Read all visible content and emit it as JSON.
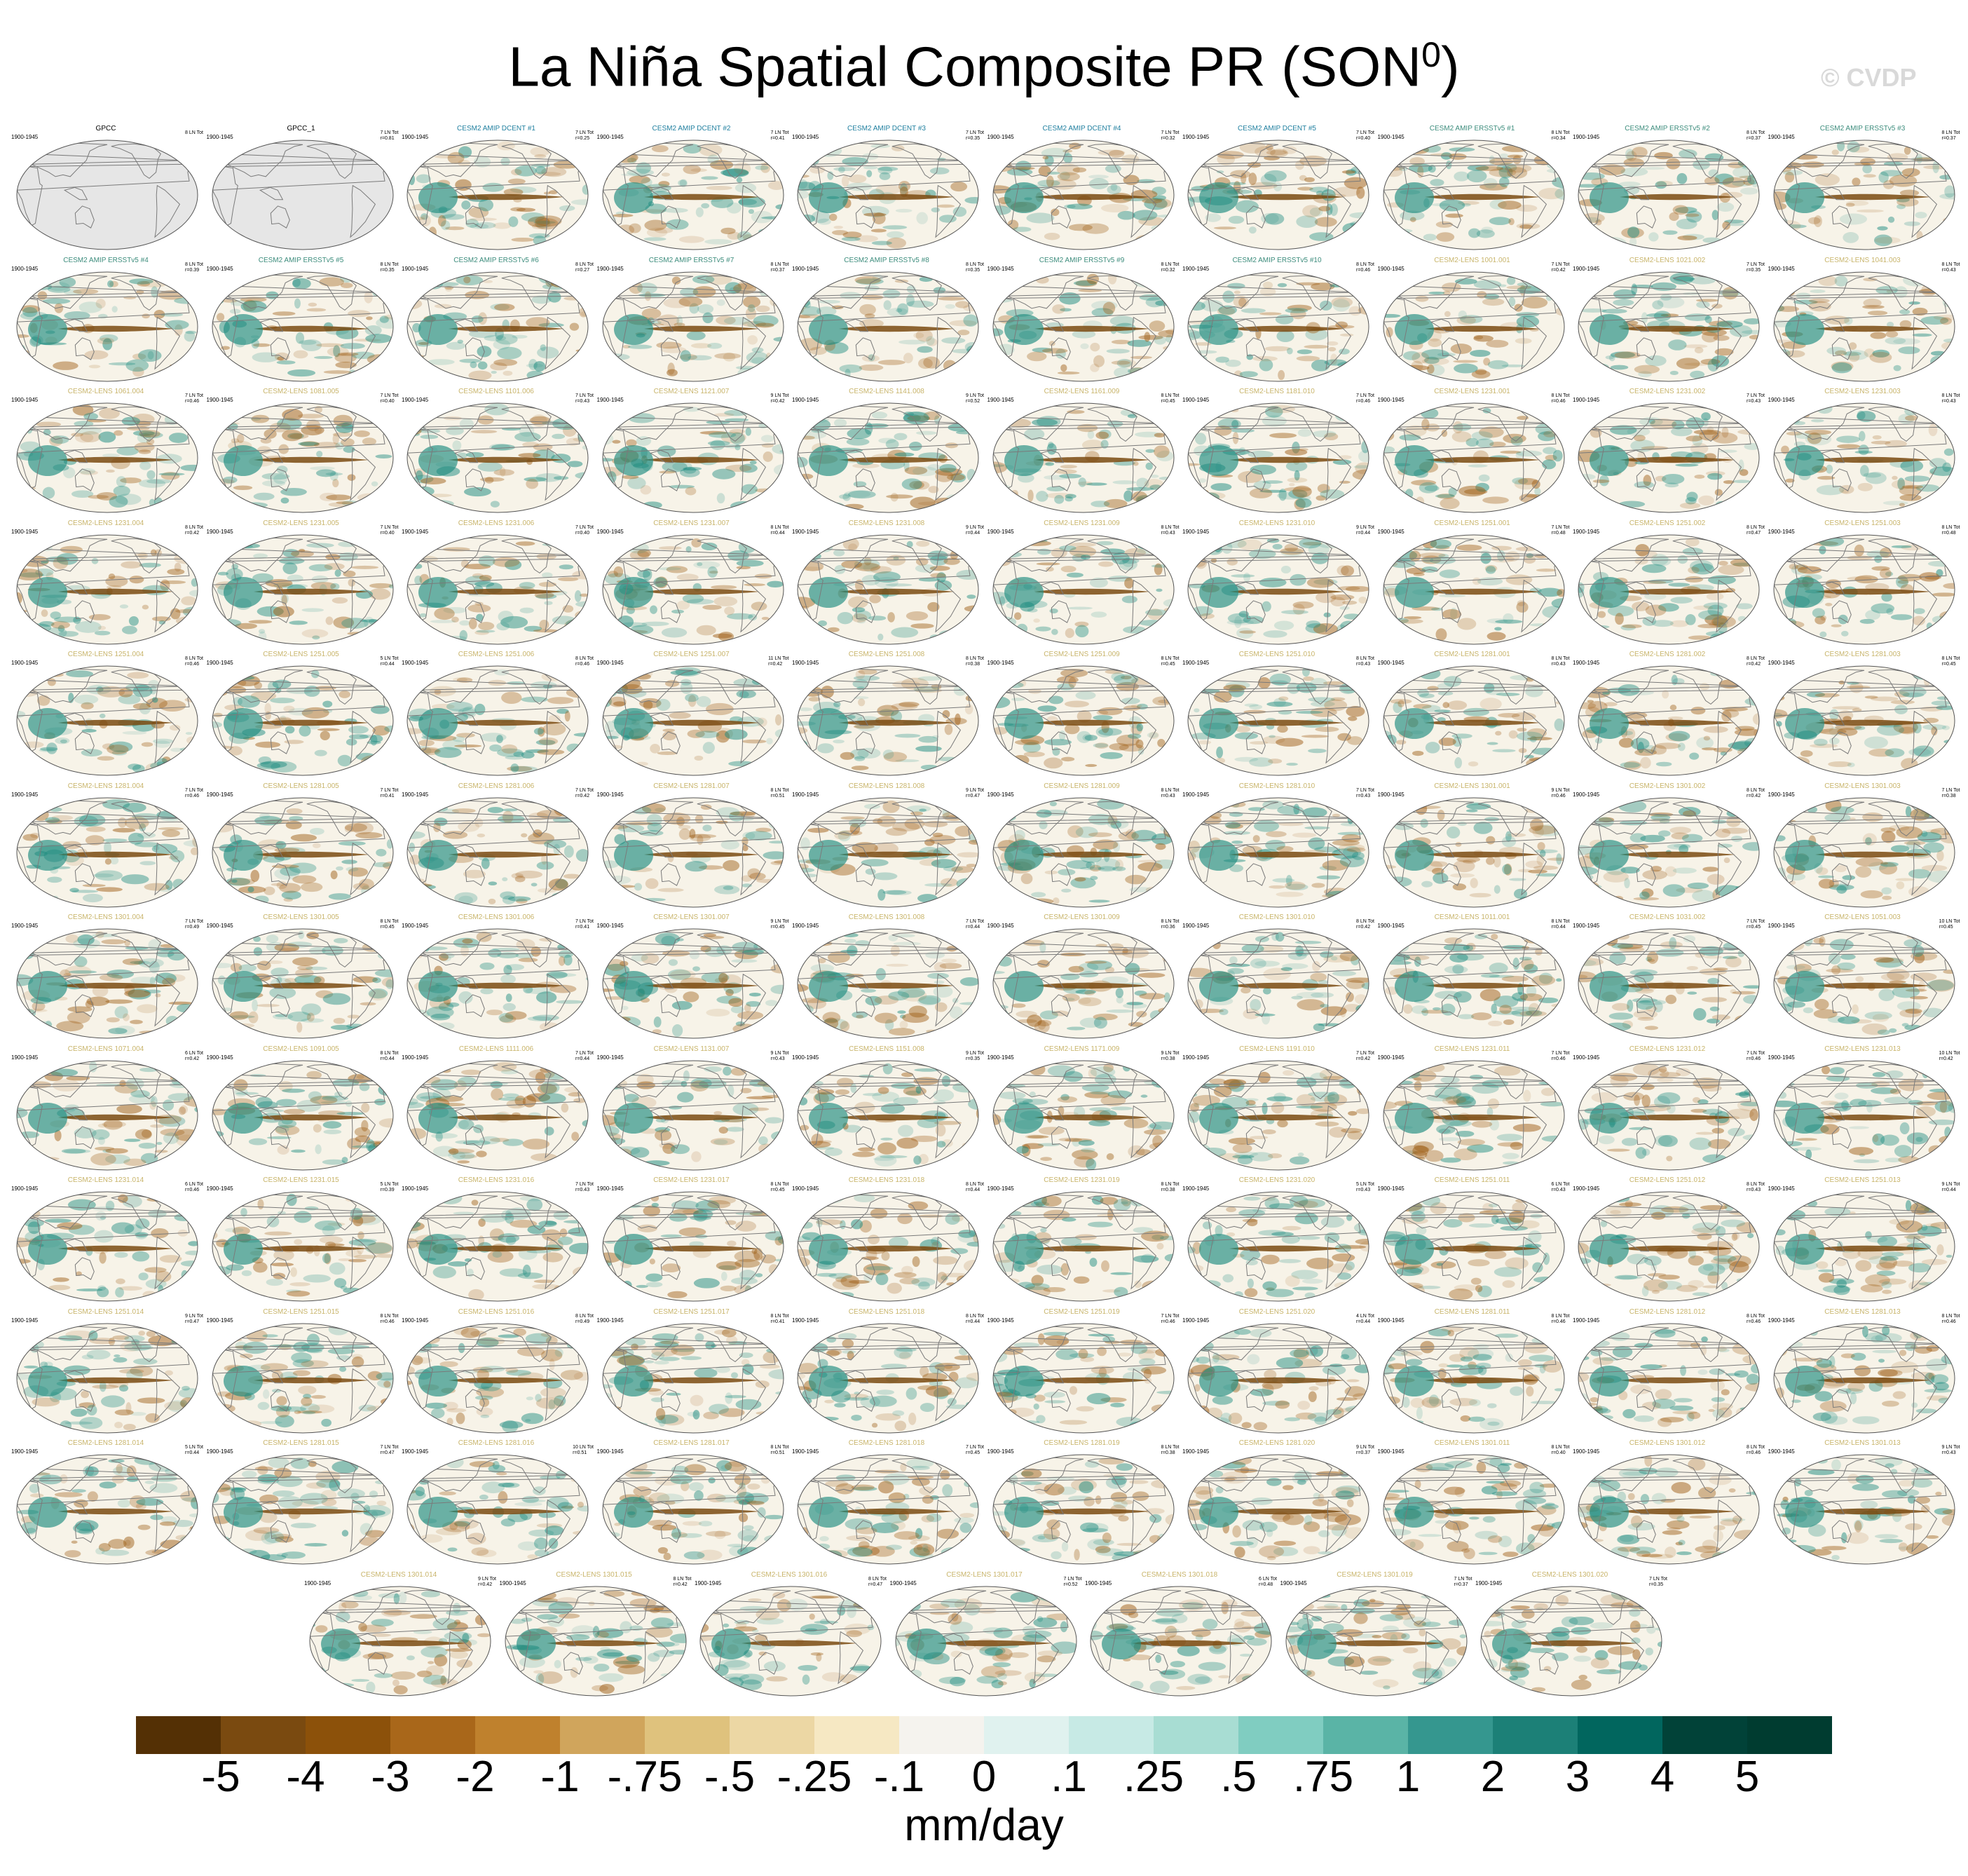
{
  "title": {
    "text": "La Niña Spatial Composite PR (SON",
    "superscript": "0",
    "suffix": ")"
  },
  "watermark": "© CVDP",
  "period": "1900-1945",
  "colors": {
    "obs_title": "#000000",
    "amip_title": "#1f7f9f",
    "ersst_title": "#3c8c7c",
    "lens_title": "#c8b46a",
    "coast": "#7a7a7a",
    "land_obs": "#e6e6e6",
    "ocean_bg": "#f7f3e8",
    "dry": "#a0611a",
    "wet": "#1e8c80"
  },
  "chart_data": {
    "type": "heatmap",
    "description_units": "mm/day",
    "colorbar": {
      "labels": [
        "-5",
        "-4",
        "-3",
        "-2",
        "-1",
        "-.75",
        "-.5",
        "-.25",
        "-.1",
        "0",
        ".1",
        ".25",
        ".5",
        ".75",
        "1",
        "2",
        "3",
        "4",
        "5"
      ],
      "colors": [
        "#543005",
        "#7a4a10",
        "#8c510a",
        "#a9671a",
        "#bf812d",
        "#d0a55c",
        "#dfc27d",
        "#ecd7a4",
        "#f6e8c3",
        "#f5f3ee",
        "#e0f2ef",
        "#c7eae5",
        "#a8ddd3",
        "#80cdc1",
        "#5ab4a6",
        "#35978f",
        "#1c8077",
        "#01665e",
        "#014238",
        "#003c30"
      ]
    },
    "units": "mm/day",
    "panels": [
      {
        "name": "GPCC",
        "stat": "8 LN Tot",
        "group": "obs"
      },
      {
        "name": "GPCC_1",
        "stat": "7 LN Tot\nr=0.81",
        "group": "obs"
      },
      {
        "name": "CESM2 AMIP DCENT #1",
        "stat": "7 LN Tot\nr=0.25",
        "group": "amip"
      },
      {
        "name": "CESM2 AMIP DCENT #2",
        "stat": "7 LN Tot\nr=0.41",
        "group": "amip"
      },
      {
        "name": "CESM2 AMIP DCENT #3",
        "stat": "7 LN Tot\nr=0.35",
        "group": "amip"
      },
      {
        "name": "CESM2 AMIP DCENT #4",
        "stat": "7 LN Tot\nr=0.32",
        "group": "amip"
      },
      {
        "name": "CESM2 AMIP DCENT #5",
        "stat": "7 LN Tot\nr=0.40",
        "group": "amip"
      },
      {
        "name": "CESM2 AMIP ERSSTv5 #1",
        "stat": "8 LN Tot\nr=0.34",
        "group": "ersst"
      },
      {
        "name": "CESM2 AMIP ERSSTv5 #2",
        "stat": "8 LN Tot\nr=0.37",
        "group": "ersst"
      },
      {
        "name": "CESM2 AMIP ERSSTv5 #3",
        "stat": "8 LN Tot\nr=0.37",
        "group": "ersst"
      },
      {
        "name": "CESM2 AMIP ERSSTv5 #4",
        "stat": "8 LN Tot\nr=0.39",
        "group": "ersst"
      },
      {
        "name": "CESM2 AMIP ERSSTv5 #5",
        "stat": "8 LN Tot\nr=0.35",
        "group": "ersst"
      },
      {
        "name": "CESM2 AMIP ERSSTv5 #6",
        "stat": "8 LN Tot\nr=0.27",
        "group": "ersst"
      },
      {
        "name": "CESM2 AMIP ERSSTv5 #7",
        "stat": "8 LN Tot\nr=0.37",
        "group": "ersst"
      },
      {
        "name": "CESM2 AMIP ERSSTv5 #8",
        "stat": "8 LN Tot\nr=0.35",
        "group": "ersst"
      },
      {
        "name": "CESM2 AMIP ERSSTv5 #9",
        "stat": "8 LN Tot\nr=0.32",
        "group": "ersst"
      },
      {
        "name": "CESM2 AMIP ERSSTv5 #10",
        "stat": "8 LN Tot\nr=0.46",
        "group": "ersst"
      },
      {
        "name": "CESM2-LENS 1001.001",
        "stat": "7 LN Tot\nr=0.42",
        "group": "lens"
      },
      {
        "name": "CESM2-LENS 1021.002",
        "stat": "7 LN Tot\nr=0.35",
        "group": "lens"
      },
      {
        "name": "CESM2-LENS 1041.003",
        "stat": "8 LN Tot\nr=0.43",
        "group": "lens"
      },
      {
        "name": "CESM2-LENS 1061.004",
        "stat": "7 LN Tot\nr=0.46",
        "group": "lens"
      },
      {
        "name": "CESM2-LENS 1081.005",
        "stat": "7 LN Tot\nr=0.40",
        "group": "lens"
      },
      {
        "name": "CESM2-LENS 1101.006",
        "stat": "7 LN Tot\nr=0.43",
        "group": "lens"
      },
      {
        "name": "CESM2-LENS 1121.007",
        "stat": "9 LN Tot\nr=0.42",
        "group": "lens"
      },
      {
        "name": "CESM2-LENS 1141.008",
        "stat": "9 LN Tot\nr=0.52",
        "group": "lens"
      },
      {
        "name": "CESM2-LENS 1161.009",
        "stat": "8 LN Tot\nr=0.45",
        "group": "lens"
      },
      {
        "name": "CESM2-LENS 1181.010",
        "stat": "7 LN Tot\nr=0.46",
        "group": "lens"
      },
      {
        "name": "CESM2-LENS 1231.001",
        "stat": "8 LN Tot\nr=0.46",
        "group": "lens"
      },
      {
        "name": "CESM2-LENS 1231.002",
        "stat": "7 LN Tot\nr=0.43",
        "group": "lens"
      },
      {
        "name": "CESM2-LENS 1231.003",
        "stat": "8 LN Tot\nr=0.43",
        "group": "lens"
      },
      {
        "name": "CESM2-LENS 1231.004",
        "stat": "8 LN Tot\nr=0.42",
        "group": "lens"
      },
      {
        "name": "CESM2-LENS 1231.005",
        "stat": "7 LN Tot\nr=0.40",
        "group": "lens"
      },
      {
        "name": "CESM2-LENS 1231.006",
        "stat": "7 LN Tot\nr=0.40",
        "group": "lens"
      },
      {
        "name": "CESM2-LENS 1231.007",
        "stat": "8 LN Tot\nr=0.44",
        "group": "lens"
      },
      {
        "name": "CESM2-LENS 1231.008",
        "stat": "9 LN Tot\nr=0.44",
        "group": "lens"
      },
      {
        "name": "CESM2-LENS 1231.009",
        "stat": "8 LN Tot\nr=0.43",
        "group": "lens"
      },
      {
        "name": "CESM2-LENS 1231.010",
        "stat": "9 LN Tot\nr=0.44",
        "group": "lens"
      },
      {
        "name": "CESM2-LENS 1251.001",
        "stat": "7 LN Tot\nr=0.48",
        "group": "lens"
      },
      {
        "name": "CESM2-LENS 1251.002",
        "stat": "8 LN Tot\nr=0.47",
        "group": "lens"
      },
      {
        "name": "CESM2-LENS 1251.003",
        "stat": "8 LN Tot\nr=0.48",
        "group": "lens"
      },
      {
        "name": "CESM2-LENS 1251.004",
        "stat": "8 LN Tot\nr=0.46",
        "group": "lens"
      },
      {
        "name": "CESM2-LENS 1251.005",
        "stat": "5 LN Tot\nr=0.44",
        "group": "lens"
      },
      {
        "name": "CESM2-LENS 1251.006",
        "stat": "8 LN Tot\nr=0.46",
        "group": "lens"
      },
      {
        "name": "CESM2-LENS 1251.007",
        "stat": "11 LN Tot\nr=0.42",
        "group": "lens"
      },
      {
        "name": "CESM2-LENS 1251.008",
        "stat": "8 LN Tot\nr=0.38",
        "group": "lens"
      },
      {
        "name": "CESM2-LENS 1251.009",
        "stat": "8 LN Tot\nr=0.45",
        "group": "lens"
      },
      {
        "name": "CESM2-LENS 1251.010",
        "stat": "8 LN Tot\nr=0.43",
        "group": "lens"
      },
      {
        "name": "CESM2-LENS 1281.001",
        "stat": "8 LN Tot\nr=0.43",
        "group": "lens"
      },
      {
        "name": "CESM2-LENS 1281.002",
        "stat": "8 LN Tot\nr=0.42",
        "group": "lens"
      },
      {
        "name": "CESM2-LENS 1281.003",
        "stat": "8 LN Tot\nr=0.45",
        "group": "lens"
      },
      {
        "name": "CESM2-LENS 1281.004",
        "stat": "7 LN Tot\nr=0.46",
        "group": "lens"
      },
      {
        "name": "CESM2-LENS 1281.005",
        "stat": "7 LN Tot\nr=0.41",
        "group": "lens"
      },
      {
        "name": "CESM2-LENS 1281.006",
        "stat": "7 LN Tot\nr=0.42",
        "group": "lens"
      },
      {
        "name": "CESM2-LENS 1281.007",
        "stat": "8 LN Tot\nr=0.51",
        "group": "lens"
      },
      {
        "name": "CESM2-LENS 1281.008",
        "stat": "9 LN Tot\nr=0.47",
        "group": "lens"
      },
      {
        "name": "CESM2-LENS 1281.009",
        "stat": "8 LN Tot\nr=0.43",
        "group": "lens"
      },
      {
        "name": "CESM2-LENS 1281.010",
        "stat": "7 LN Tot\nr=0.43",
        "group": "lens"
      },
      {
        "name": "CESM2-LENS 1301.001",
        "stat": "9 LN Tot\nr=0.46",
        "group": "lens"
      },
      {
        "name": "CESM2-LENS 1301.002",
        "stat": "8 LN Tot\nr=0.42",
        "group": "lens"
      },
      {
        "name": "CESM2-LENS 1301.003",
        "stat": "7 LN Tot\nr=0.38",
        "group": "lens"
      },
      {
        "name": "CESM2-LENS 1301.004",
        "stat": "7 LN Tot\nr=0.49",
        "group": "lens"
      },
      {
        "name": "CESM2-LENS 1301.005",
        "stat": "8 LN Tot\nr=0.45",
        "group": "lens"
      },
      {
        "name": "CESM2-LENS 1301.006",
        "stat": "7 LN Tot\nr=0.41",
        "group": "lens"
      },
      {
        "name": "CESM2-LENS 1301.007",
        "stat": "9 LN Tot\nr=0.45",
        "group": "lens"
      },
      {
        "name": "CESM2-LENS 1301.008",
        "stat": "7 LN Tot\nr=0.44",
        "group": "lens"
      },
      {
        "name": "CESM2-LENS 1301.009",
        "stat": "8 LN Tot\nr=0.36",
        "group": "lens"
      },
      {
        "name": "CESM2-LENS 1301.010",
        "stat": "8 LN Tot\nr=0.42",
        "group": "lens"
      },
      {
        "name": "CESM2-LENS 1011.001",
        "stat": "8 LN Tot\nr=0.44",
        "group": "lens"
      },
      {
        "name": "CESM2-LENS 1031.002",
        "stat": "7 LN Tot\nr=0.45",
        "group": "lens"
      },
      {
        "name": "CESM2-LENS 1051.003",
        "stat": "10 LN Tot\nr=0.45",
        "group": "lens"
      },
      {
        "name": "CESM2-LENS 1071.004",
        "stat": "6 LN Tot\nr=0.42",
        "group": "lens"
      },
      {
        "name": "CESM2-LENS 1091.005",
        "stat": "8 LN Tot\nr=0.44",
        "group": "lens"
      },
      {
        "name": "CESM2-LENS 1111.006",
        "stat": "7 LN Tot\nr=0.44",
        "group": "lens"
      },
      {
        "name": "CESM2-LENS 1131.007",
        "stat": "9 LN Tot\nr=0.43",
        "group": "lens"
      },
      {
        "name": "CESM2-LENS 1151.008",
        "stat": "9 LN Tot\nr=0.35",
        "group": "lens"
      },
      {
        "name": "CESM2-LENS 1171.009",
        "stat": "9 LN Tot\nr=0.38",
        "group": "lens"
      },
      {
        "name": "CESM2-LENS 1191.010",
        "stat": "7 LN Tot\nr=0.42",
        "group": "lens"
      },
      {
        "name": "CESM2-LENS 1231.011",
        "stat": "7 LN Tot\nr=0.46",
        "group": "lens"
      },
      {
        "name": "CESM2-LENS 1231.012",
        "stat": "7 LN Tot\nr=0.46",
        "group": "lens"
      },
      {
        "name": "CESM2-LENS 1231.013",
        "stat": "10 LN Tot\nr=0.42",
        "group": "lens"
      },
      {
        "name": "CESM2-LENS 1231.014",
        "stat": "6 LN Tot\nr=0.46",
        "group": "lens"
      },
      {
        "name": "CESM2-LENS 1231.015",
        "stat": "5 LN Tot\nr=0.39",
        "group": "lens"
      },
      {
        "name": "CESM2-LENS 1231.016",
        "stat": "7 LN Tot\nr=0.43",
        "group": "lens"
      },
      {
        "name": "CESM2-LENS 1231.017",
        "stat": "8 LN Tot\nr=0.45",
        "group": "lens"
      },
      {
        "name": "CESM2-LENS 1231.018",
        "stat": "8 LN Tot\nr=0.44",
        "group": "lens"
      },
      {
        "name": "CESM2-LENS 1231.019",
        "stat": "8 LN Tot\nr=0.38",
        "group": "lens"
      },
      {
        "name": "CESM2-LENS 1231.020",
        "stat": "5 LN Tot\nr=0.43",
        "group": "lens"
      },
      {
        "name": "CESM2-LENS 1251.011",
        "stat": "6 LN Tot\nr=0.43",
        "group": "lens"
      },
      {
        "name": "CESM2-LENS 1251.012",
        "stat": "8 LN Tot\nr=0.43",
        "group": "lens"
      },
      {
        "name": "CESM2-LENS 1251.013",
        "stat": "9 LN Tot\nr=0.44",
        "group": "lens"
      },
      {
        "name": "CESM2-LENS 1251.014",
        "stat": "9 LN Tot\nr=0.47",
        "group": "lens"
      },
      {
        "name": "CESM2-LENS 1251.015",
        "stat": "8 LN Tot\nr=0.46",
        "group": "lens"
      },
      {
        "name": "CESM2-LENS 1251.016",
        "stat": "8 LN Tot\nr=0.49",
        "group": "lens"
      },
      {
        "name": "CESM2-LENS 1251.017",
        "stat": "8 LN Tot\nr=0.41",
        "group": "lens"
      },
      {
        "name": "CESM2-LENS 1251.018",
        "stat": "8 LN Tot\nr=0.44",
        "group": "lens"
      },
      {
        "name": "CESM2-LENS 1251.019",
        "stat": "7 LN Tot\nr=0.46",
        "group": "lens"
      },
      {
        "name": "CESM2-LENS 1251.020",
        "stat": "4 LN Tot\nr=0.44",
        "group": "lens"
      },
      {
        "name": "CESM2-LENS 1281.011",
        "stat": "8 LN Tot\nr=0.46",
        "group": "lens"
      },
      {
        "name": "CESM2-LENS 1281.012",
        "stat": "8 LN Tot\nr=0.46",
        "group": "lens"
      },
      {
        "name": "CESM2-LENS 1281.013",
        "stat": "8 LN Tot\nr=0.46",
        "group": "lens"
      },
      {
        "name": "CESM2-LENS 1281.014",
        "stat": "5 LN Tot\nr=0.44",
        "group": "lens"
      },
      {
        "name": "CESM2-LENS 1281.015",
        "stat": "7 LN Tot\nr=0.47",
        "group": "lens"
      },
      {
        "name": "CESM2-LENS 1281.016",
        "stat": "10 LN Tot\nr=0.51",
        "group": "lens"
      },
      {
        "name": "CESM2-LENS 1281.017",
        "stat": "8 LN Tot\nr=0.51",
        "group": "lens"
      },
      {
        "name": "CESM2-LENS 1281.018",
        "stat": "7 LN Tot\nr=0.45",
        "group": "lens"
      },
      {
        "name": "CESM2-LENS 1281.019",
        "stat": "8 LN Tot\nr=0.38",
        "group": "lens"
      },
      {
        "name": "CESM2-LENS 1281.020",
        "stat": "9 LN Tot\nr=0.37",
        "group": "lens"
      },
      {
        "name": "CESM2-LENS 1301.011",
        "stat": "8 LN Tot\nr=0.40",
        "group": "lens"
      },
      {
        "name": "CESM2-LENS 1301.012",
        "stat": "8 LN Tot\nr=0.46",
        "group": "lens"
      },
      {
        "name": "CESM2-LENS 1301.013",
        "stat": "9 LN Tot\nr=0.43",
        "group": "lens"
      },
      {
        "name": "CESM2-LENS 1301.014",
        "stat": "9 LN Tot\nr=0.42",
        "group": "lens"
      },
      {
        "name": "CESM2-LENS 1301.015",
        "stat": "8 LN Tot\nr=0.42",
        "group": "lens"
      },
      {
        "name": "CESM2-LENS 1301.016",
        "stat": "8 LN Tot\nr=0.47",
        "group": "lens"
      },
      {
        "name": "CESM2-LENS 1301.017",
        "stat": "7 LN Tot\nr=0.52",
        "group": "lens"
      },
      {
        "name": "CESM2-LENS 1301.018",
        "stat": "6 LN Tot\nr=0.48",
        "group": "lens"
      },
      {
        "name": "CESM2-LENS 1301.019",
        "stat": "7 LN Tot\nr=0.37",
        "group": "lens"
      },
      {
        "name": "CESM2-LENS 1301.020",
        "stat": "7 LN Tot\nr=0.35",
        "group": "lens"
      }
    ]
  }
}
